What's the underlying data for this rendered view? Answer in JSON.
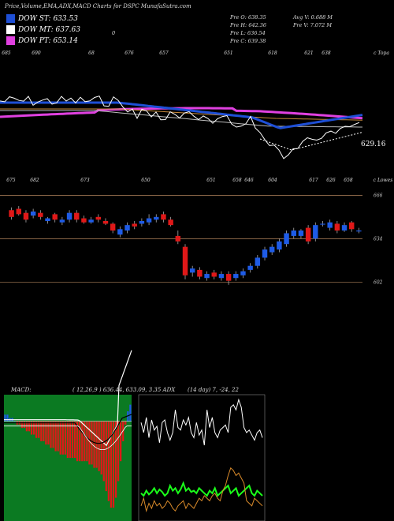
{
  "header": {
    "title": "Price,Volume,EMA,ADX,MACD Charts for DSPC MunafaSutra.com"
  },
  "legend": [
    {
      "label": "DOW ST: 633.53",
      "color": "#1e4fd6"
    },
    {
      "label": "DOW MT: 637.63",
      "color": "#ffffff"
    },
    {
      "label": "DOW PT: 653.14",
      "color": "#e040e0"
    }
  ],
  "stats": {
    "prev_o": "Pre O: 638.35",
    "prev_h": "Pre H: 642.36",
    "prev_l": "Pre L: 636.54",
    "prev_c": "Pre C: 639.38",
    "avg_v": "Avg V: 0.688  M",
    "prev_v": "Pre V: 7.072  M",
    "marker": "0"
  },
  "ema_panel": {
    "top_ticks": [
      "685",
      "690",
      "68",
      "676",
      "657",
      "651",
      "618",
      "621",
      "638",
      "c Topa"
    ],
    "bottom_ticks": [
      "675",
      "682",
      "673",
      "650",
      "651",
      "658",
      "646",
      "604",
      "617",
      "626",
      "658",
      "c Lowes"
    ],
    "last_value": "629.16"
  },
  "price_panel": {
    "levels": [
      "666",
      "634",
      "602"
    ]
  },
  "macd_panel": {
    "label": "MACD:",
    "values": "( 12,26,9 ) 636.44, 633.09, 3.35 ADX",
    "adx_values": "(14  day) 7, -24, 22"
  },
  "chart_data": [
    {
      "type": "line",
      "series": [
        {
          "values": [
            632,
            631,
            633,
            632,
            634,
            633,
            631,
            630,
            632,
            629,
            631,
            628,
            627,
            626,
            630,
            612,
            608,
            611,
            615,
            620,
            622,
            625,
            627,
            629
          ]
        }
      ]
    },
    {
      "type": "candlestick",
      "ylim": [
        590,
        672
      ],
      "gridlines": [
        666,
        634,
        602
      ],
      "candles": [
        {
          "o": 655,
          "c": 650,
          "h": 657,
          "l": 648
        },
        {
          "o": 656,
          "c": 652,
          "h": 658,
          "l": 651
        },
        {
          "o": 653,
          "c": 648,
          "h": 655,
          "l": 646
        },
        {
          "o": 651,
          "c": 654,
          "h": 656,
          "l": 649
        },
        {
          "o": 653,
          "c": 650,
          "h": 655,
          "l": 648
        },
        {
          "o": 647,
          "c": 649,
          "h": 650,
          "l": 645
        },
        {
          "o": 652,
          "c": 648,
          "h": 653,
          "l": 646
        },
        {
          "o": 646,
          "c": 648,
          "h": 650,
          "l": 644
        },
        {
          "o": 648,
          "c": 653,
          "h": 655,
          "l": 646
        },
        {
          "o": 653,
          "c": 648,
          "h": 655,
          "l": 646
        },
        {
          "o": 649,
          "c": 646,
          "h": 651,
          "l": 645
        },
        {
          "o": 646,
          "c": 648,
          "h": 650,
          "l": 645
        },
        {
          "o": 650,
          "c": 648,
          "h": 652,
          "l": 646
        },
        {
          "o": 647,
          "c": 645,
          "h": 649,
          "l": 644
        },
        {
          "o": 645,
          "c": 640,
          "h": 646,
          "l": 638
        },
        {
          "o": 637,
          "c": 641,
          "h": 643,
          "l": 635
        },
        {
          "o": 640,
          "c": 644,
          "h": 646,
          "l": 638
        },
        {
          "o": 645,
          "c": 643,
          "h": 647,
          "l": 641
        },
        {
          "o": 645,
          "c": 647,
          "h": 649,
          "l": 643
        },
        {
          "o": 646,
          "c": 649,
          "h": 652,
          "l": 644
        },
        {
          "o": 648,
          "c": 650,
          "h": 652,
          "l": 646
        },
        {
          "o": 652,
          "c": 648,
          "h": 654,
          "l": 646
        },
        {
          "o": 648,
          "c": 644,
          "h": 650,
          "l": 643
        },
        {
          "o": 636,
          "c": 632,
          "h": 640,
          "l": 630
        },
        {
          "o": 628,
          "c": 607,
          "h": 630,
          "l": 604
        },
        {
          "o": 609,
          "c": 612,
          "h": 614,
          "l": 606
        },
        {
          "o": 611,
          "c": 606,
          "h": 613,
          "l": 604
        },
        {
          "o": 605,
          "c": 608,
          "h": 610,
          "l": 603
        },
        {
          "o": 609,
          "c": 606,
          "h": 611,
          "l": 604
        },
        {
          "o": 605,
          "c": 608,
          "h": 610,
          "l": 603
        },
        {
          "o": 608,
          "c": 603,
          "h": 610,
          "l": 600
        },
        {
          "o": 605,
          "c": 608,
          "h": 610,
          "l": 603
        },
        {
          "o": 607,
          "c": 610,
          "h": 612,
          "l": 605
        },
        {
          "o": 611,
          "c": 614,
          "h": 616,
          "l": 609
        },
        {
          "o": 614,
          "c": 620,
          "h": 622,
          "l": 612
        },
        {
          "o": 620,
          "c": 626,
          "h": 628,
          "l": 618
        },
        {
          "o": 624,
          "c": 628,
          "h": 630,
          "l": 622
        },
        {
          "o": 626,
          "c": 632,
          "h": 634,
          "l": 624
        },
        {
          "o": 630,
          "c": 638,
          "h": 640,
          "l": 628
        },
        {
          "o": 636,
          "c": 640,
          "h": 642,
          "l": 634
        },
        {
          "o": 636,
          "c": 640,
          "h": 641,
          "l": 634
        },
        {
          "o": 642,
          "c": 632,
          "h": 644,
          "l": 630
        },
        {
          "o": 634,
          "c": 644,
          "h": 646,
          "l": 632
        },
        {
          "o": 645,
          "c": 645,
          "h": 647,
          "l": 643
        },
        {
          "o": 642,
          "c": 646,
          "h": 648,
          "l": 640
        },
        {
          "o": 645,
          "c": 640,
          "h": 647,
          "l": 638
        },
        {
          "o": 640,
          "c": 644,
          "h": 646,
          "l": 639
        },
        {
          "o": 646,
          "c": 641,
          "h": 647,
          "l": 639
        },
        {
          "o": 640,
          "c": 640,
          "h": 642,
          "l": 638
        }
      ]
    },
    {
      "type": "bar",
      "ylim": [
        -30,
        8
      ],
      "values": [
        2,
        2,
        1,
        1,
        0,
        -1,
        -1,
        -2,
        -2,
        -3,
        -3,
        -4,
        -4,
        -5,
        -5,
        -6,
        -6,
        -7,
        -7,
        -8,
        -8,
        -9,
        -9,
        -10,
        -10,
        -10,
        -11,
        -11,
        -11,
        -11,
        -12,
        -12,
        -12,
        -12,
        -12,
        -13,
        -13,
        -14,
        -14,
        -15,
        -16,
        -18,
        -21,
        -24,
        -26,
        -26,
        -23,
        -18,
        -12,
        -6,
        -1,
        3,
        5
      ]
    },
    {
      "type": "line",
      "ylim": [
        0,
        100
      ],
      "series": [
        {
          "values": [
            78,
            70,
            82,
            66,
            80,
            72,
            75,
            62,
            78,
            80,
            70,
            64,
            70,
            88,
            74,
            72,
            80,
            76,
            82,
            70,
            66,
            78,
            68,
            72,
            60,
            88,
            74,
            82,
            70,
            66,
            72,
            74,
            76,
            70,
            90,
            92,
            88,
            96,
            90,
            74,
            70,
            72,
            68,
            64,
            70,
            72,
            66
          ]
        },
        {
          "values": [
            22,
            20,
            24,
            21,
            23,
            26,
            22,
            25,
            23,
            20,
            22,
            28,
            24,
            26,
            22,
            25,
            30,
            24,
            26,
            23,
            24,
            22,
            26,
            24,
            22,
            20,
            24,
            22,
            26,
            20,
            22,
            24,
            26,
            28,
            22,
            24,
            26,
            20,
            22,
            24,
            26,
            28,
            22,
            20,
            24,
            22,
            20
          ]
        },
        {
          "values": [
            12,
            18,
            8,
            14,
            10,
            16,
            12,
            14,
            10,
            12,
            16,
            14,
            10,
            8,
            12,
            14,
            16,
            10,
            14,
            12,
            10,
            14,
            18,
            16,
            20,
            18,
            16,
            20,
            22,
            18,
            16,
            24,
            28,
            36,
            42,
            40,
            36,
            38,
            34,
            30,
            16,
            14,
            12,
            18,
            16,
            14,
            12
          ]
        }
      ]
    }
  ]
}
